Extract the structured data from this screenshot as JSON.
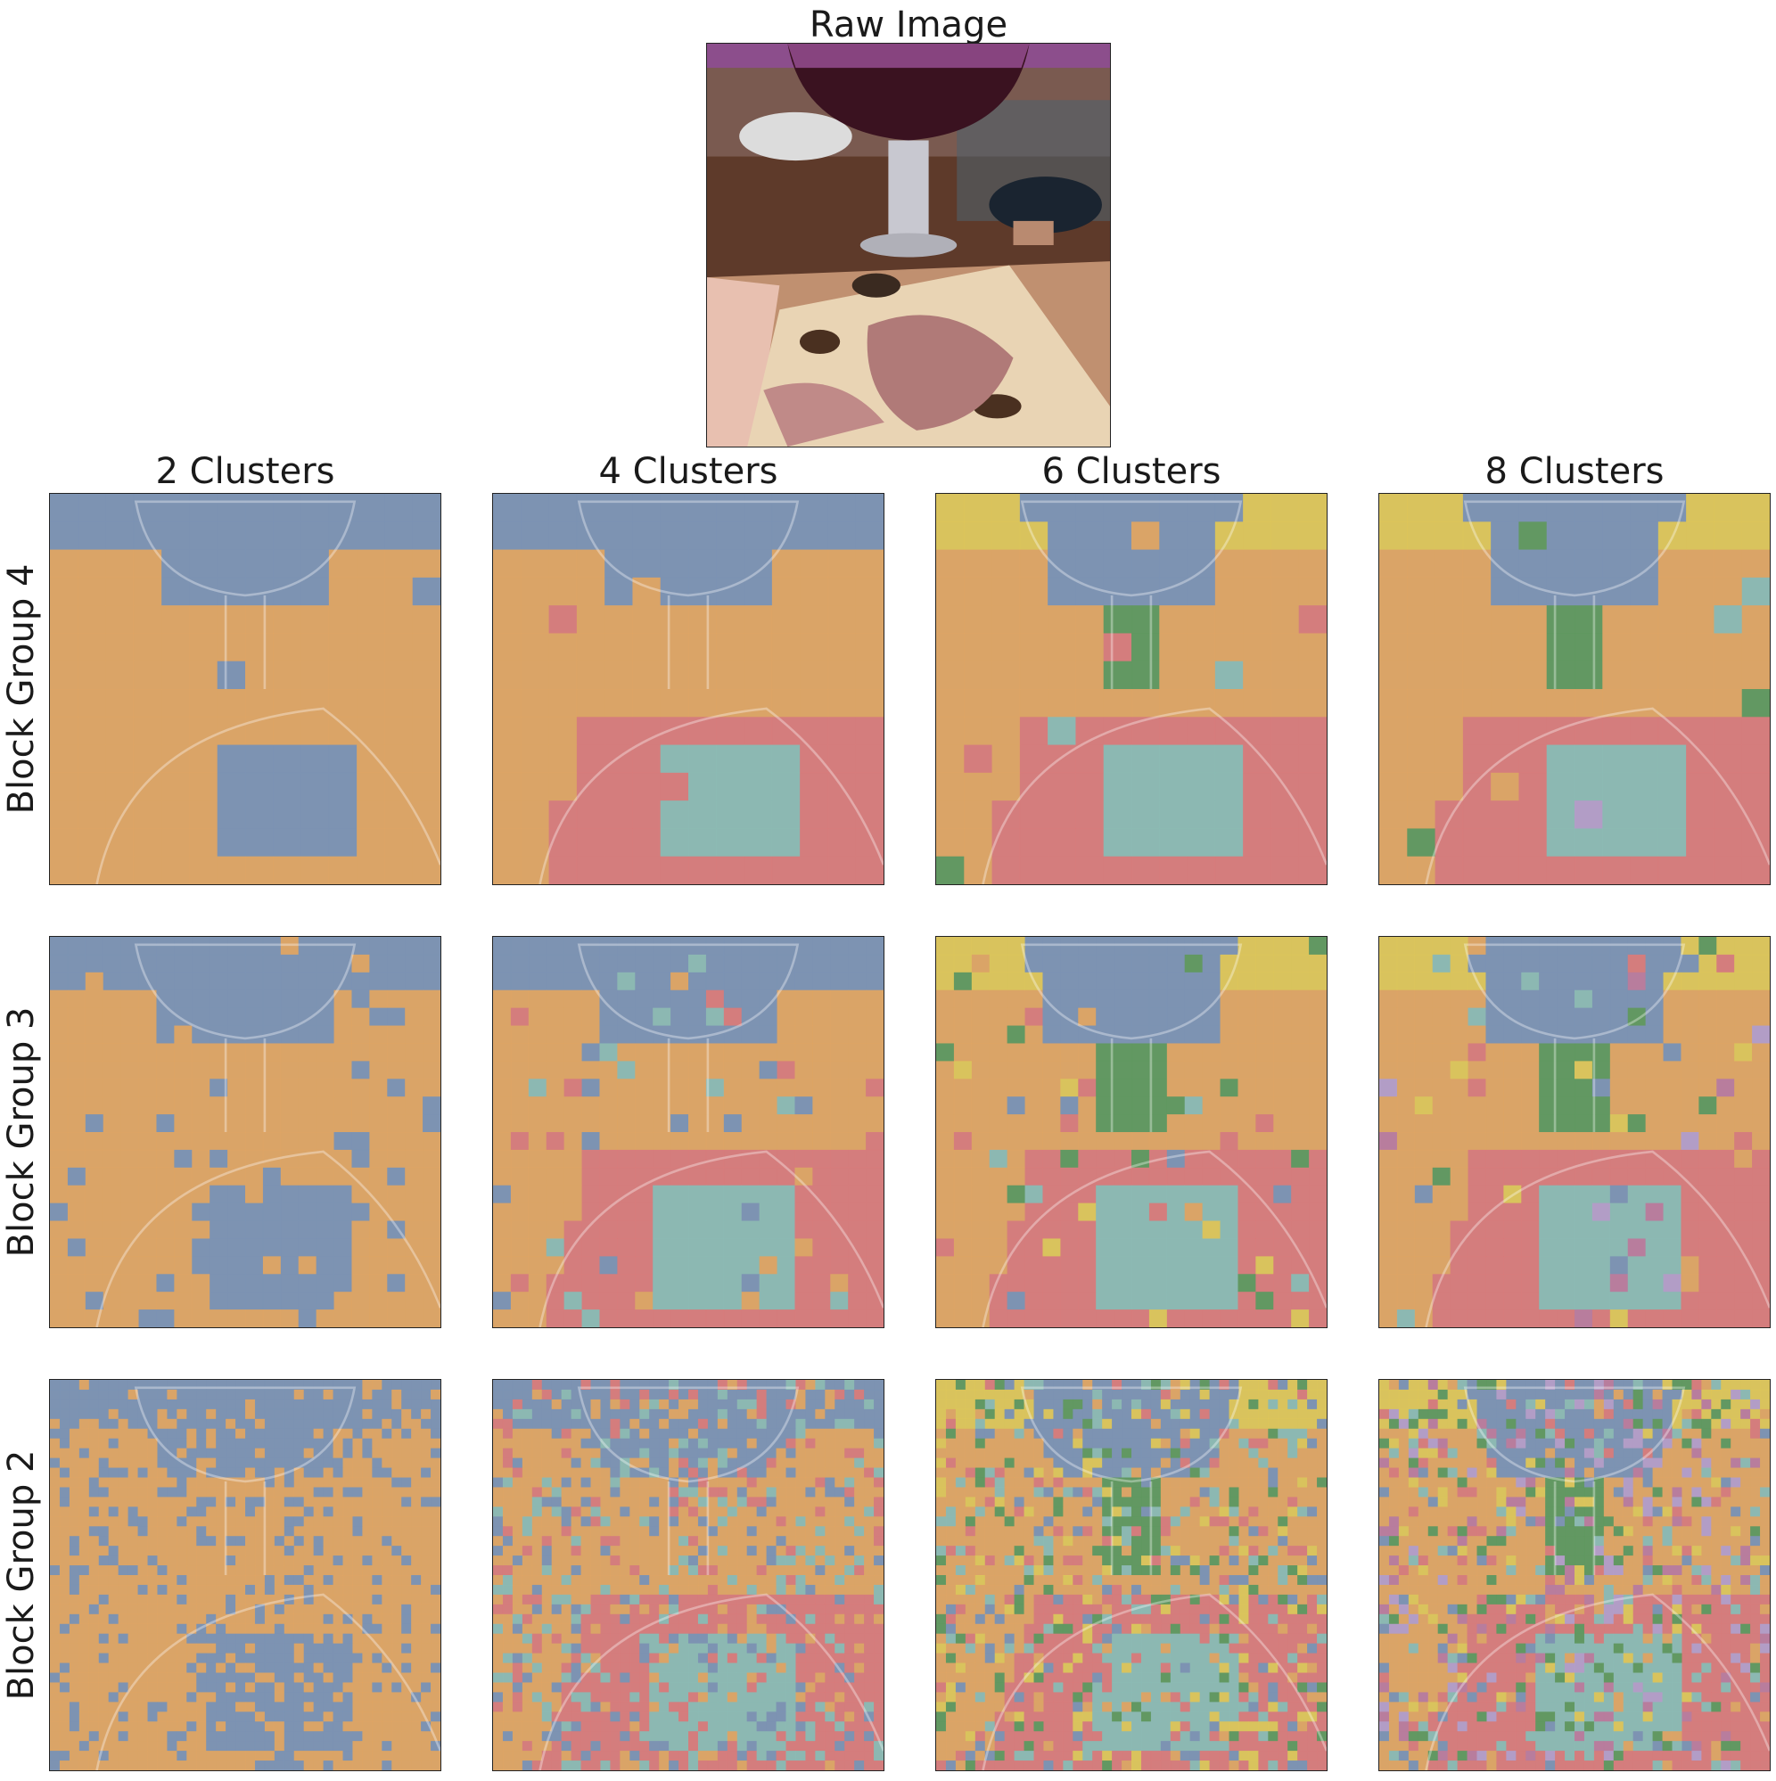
{
  "raw": {
    "title": "Raw Image"
  },
  "columns": [
    {
      "title": "2 Clusters",
      "k": 2
    },
    {
      "title": "4 Clusters",
      "k": 4
    },
    {
      "title": "6 Clusters",
      "k": 6
    },
    {
      "title": "8 Clusters",
      "k": 8
    }
  ],
  "rows": [
    {
      "label": "Block Group 4"
    },
    {
      "label": "Block Group 3"
    },
    {
      "label": "Block Group 2"
    }
  ],
  "cluster_colors": [
    "#e8a860",
    "#7a94b8",
    "#e07a7a",
    "#8cc0b8",
    "#5a9a5a",
    "#e6cc55",
    "#c07aa0",
    "#b8a0d0"
  ]
}
